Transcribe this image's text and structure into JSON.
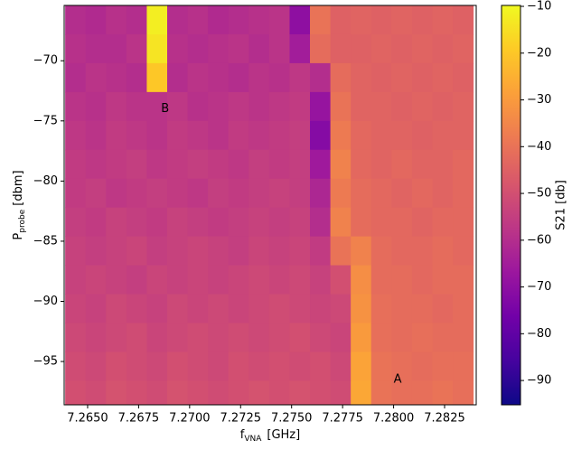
{
  "chart_data": {
    "type": "heatmap",
    "xlabel": {
      "main": "f",
      "sub": "VNA",
      "unit": "[GHz]"
    },
    "ylabel": {
      "main": "P",
      "sub": "probe",
      "unit": "[dbm]"
    },
    "colorbar_label": "S21 [db]",
    "xlim": [
      7.26385,
      7.28405
    ],
    "ylim": [
      -98.6,
      -65.4
    ],
    "clim": [
      -95.2,
      -9.8
    ],
    "cell_width": 0.001,
    "cell_height": 2.4,
    "xticks": [
      {
        "value": 7.265,
        "label": "7.2650"
      },
      7.2675,
      {
        "value": 7.27,
        "label": "7.2700"
      },
      7.2725,
      {
        "value": 7.275,
        "label": "7.2750"
      },
      7.2775,
      {
        "value": 7.28,
        "label": "7.2800"
      },
      7.2825
    ],
    "yticks": [
      {
        "value": -70,
        "label": "−70"
      },
      {
        "value": -75,
        "label": "−75"
      },
      {
        "value": -80,
        "label": "−80"
      },
      {
        "value": -85,
        "label": "−85"
      },
      {
        "value": -90,
        "label": "−90"
      },
      {
        "value": -95,
        "label": "−95"
      }
    ],
    "cticks": [
      {
        "value": -90,
        "label": "−90"
      },
      {
        "value": -80,
        "label": "−80"
      },
      {
        "value": -70,
        "label": "−70"
      },
      {
        "value": -60,
        "label": "−60"
      },
      {
        "value": -50,
        "label": "−50"
      },
      {
        "value": -40,
        "label": "−40"
      },
      {
        "value": -30,
        "label": "−30"
      },
      {
        "value": -20,
        "label": "−20"
      },
      {
        "value": -10,
        "label": "−10"
      }
    ],
    "colormap": [
      "#0d0887",
      "#46039f",
      "#7201a8",
      "#9c179e",
      "#bd3786",
      "#d8576b",
      "#ed7953",
      "#fb9f3a",
      "#fdca26",
      "#f0f921"
    ],
    "annotations": [
      {
        "text": "B",
        "x": 7.2688,
        "y": -74
      },
      {
        "text": "A",
        "x": 7.2802,
        "y": -96.5
      }
    ],
    "x": [
      7.2644,
      7.2654,
      7.2664,
      7.2674,
      7.2684,
      7.2694,
      7.2704,
      7.2714,
      7.2724,
      7.2734,
      7.2744,
      7.2754,
      7.2764,
      7.2774,
      7.2784,
      7.2794,
      7.2804,
      7.2814,
      7.2824,
      7.2834
    ],
    "y": [
      -66.6,
      -69,
      -71.4,
      -73.8,
      -76.2,
      -78.6,
      -81,
      -83.4,
      -85.8,
      -88.2,
      -90.6,
      -93,
      -95.4,
      -97.8
    ],
    "z": [
      [
        -60,
        -61,
        -59,
        -60,
        -12,
        -60,
        -59,
        -61,
        -60,
        -59,
        -58,
        -70,
        -40,
        -45,
        -44,
        -45,
        -44,
        -45,
        -44,
        -45
      ],
      [
        -59,
        -60,
        -60,
        -58,
        -14,
        -59,
        -60,
        -59,
        -58,
        -60,
        -58,
        -65,
        -42,
        -45,
        -45,
        -44,
        -45,
        -44,
        -45,
        -44
      ],
      [
        -60,
        -58,
        -59,
        -60,
        -20,
        -60,
        -58,
        -59,
        -60,
        -58,
        -59,
        -57,
        -60,
        -42,
        -44,
        -45,
        -44,
        -45,
        -44,
        -45
      ],
      [
        -58,
        -59,
        -57,
        -58,
        -58,
        -57,
        -59,
        -58,
        -57,
        -58,
        -57,
        -56,
        -68,
        -40,
        -44,
        -44,
        -45,
        -44,
        -45,
        -44
      ],
      [
        -57,
        -58,
        -56,
        -57,
        -58,
        -56,
        -57,
        -58,
        -56,
        -57,
        -56,
        -55,
        -72,
        -38,
        -43,
        -44,
        -44,
        -45,
        -44,
        -44
      ],
      [
        -56,
        -57,
        -56,
        -55,
        -57,
        -56,
        -55,
        -56,
        -57,
        -55,
        -56,
        -55,
        -66,
        -36,
        -43,
        -44,
        -43,
        -44,
        -44,
        -43
      ],
      [
        -56,
        -55,
        -57,
        -56,
        -55,
        -56,
        -57,
        -55,
        -56,
        -55,
        -54,
        -55,
        -62,
        -38,
        -42,
        -43,
        -44,
        -43,
        -44,
        -43
      ],
      [
        -55,
        -56,
        -54,
        -55,
        -56,
        -54,
        -55,
        -56,
        -55,
        -54,
        -55,
        -54,
        -60,
        -36,
        -42,
        -43,
        -43,
        -44,
        -43,
        -43
      ],
      [
        -54,
        -55,
        -54,
        -53,
        -55,
        -54,
        -53,
        -54,
        -55,
        -53,
        -54,
        -53,
        -56,
        -40,
        -36,
        -42,
        -43,
        -43,
        -42,
        -43
      ],
      [
        -54,
        -53,
        -54,
        -55,
        -53,
        -54,
        -53,
        -54,
        -53,
        -52,
        -53,
        -52,
        -54,
        -50,
        -33,
        -42,
        -42,
        -43,
        -42,
        -42
      ],
      [
        -53,
        -54,
        -52,
        -53,
        -54,
        -52,
        -53,
        -52,
        -53,
        -52,
        -51,
        -52,
        -53,
        -52,
        -32,
        -41,
        -42,
        -42,
        -43,
        -42
      ],
      [
        -52,
        -53,
        -52,
        -51,
        -53,
        -52,
        -51,
        -52,
        -51,
        -52,
        -51,
        -50,
        -52,
        -53,
        -30,
        -41,
        -42,
        -41,
        -42,
        -42
      ],
      [
        -51,
        -52,
        -50,
        -51,
        -52,
        -50,
        -51,
        -52,
        -50,
        -51,
        -50,
        -51,
        -50,
        -52,
        -28,
        -40,
        -41,
        -42,
        -41,
        -41
      ],
      [
        -50,
        -51,
        -49,
        -50,
        -51,
        -49,
        -50,
        -51,
        -50,
        -49,
        -50,
        -49,
        -50,
        -51,
        -27,
        -40,
        -41,
        -41,
        -40,
        -41
      ]
    ]
  }
}
